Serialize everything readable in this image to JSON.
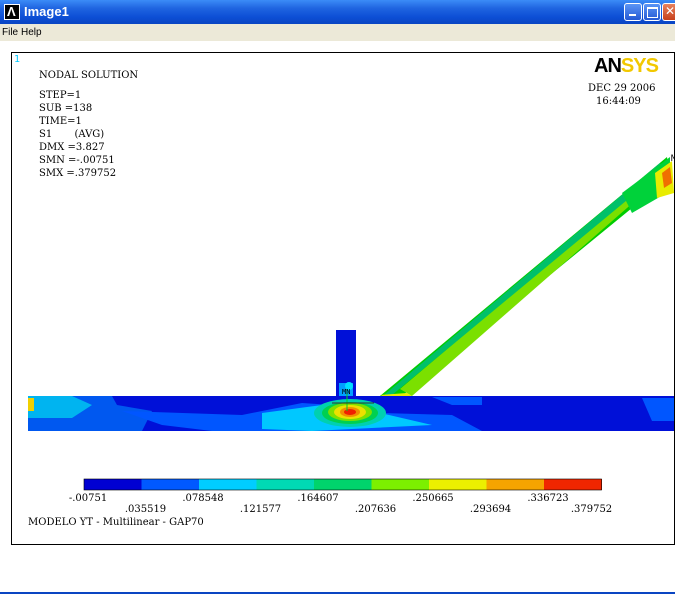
{
  "window": {
    "title": "Image1"
  },
  "menu": {
    "file": "File",
    "help": "Help"
  },
  "plot": {
    "window_number": "1",
    "heading": "NODAL SOLUTION",
    "step": "STEP=1",
    "sub": "SUB =138",
    "time": "TIME=1",
    "s1": "S1       (AVG)",
    "dmx": "DMX =3.827",
    "smn": "SMN =-.00751",
    "smx": "SMX =.379752",
    "logo_an": "AN",
    "logo_sys": "SYS",
    "date": "DEC 29 2006",
    "time_of_day": "16:44:09",
    "model_title": "MODELO YT - Multilinear - GAP70",
    "node_max_label": "MX",
    "node_min_label": "MN",
    "corner_mx": "M"
  },
  "legend": {
    "colors": [
      "#0000d2",
      "#0059ff",
      "#00cdff",
      "#00d9b4",
      "#00d46c",
      "#7cf000",
      "#ecf000",
      "#f5a400",
      "#f02600"
    ],
    "labels_top": [
      "-.00751",
      ".078548",
      ".164607",
      ".250665",
      ".336723"
    ],
    "labels_bottom": [
      ".035519",
      ".121577",
      ".207636",
      ".293694",
      ".379752"
    ]
  }
}
